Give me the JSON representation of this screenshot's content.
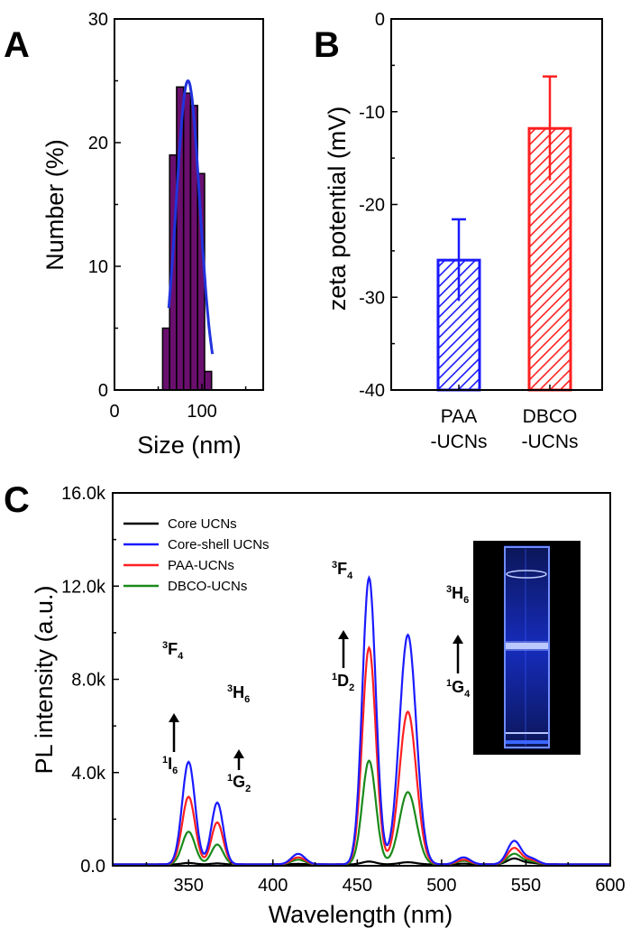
{
  "chart_data": [
    {
      "panel": "A",
      "type": "bar",
      "subtype": "histogram-with-gaussian-fit",
      "xlabel": "Size (nm)",
      "ylabel": "Number (%)",
      "xlim": [
        0,
        170
      ],
      "ylim": [
        0,
        30
      ],
      "xticks": [
        0,
        100
      ],
      "yticks": [
        0,
        10,
        20,
        30
      ],
      "bar_color": "#6a0f6e",
      "fit_color": "#2233dd",
      "bins": [
        {
          "start": 55,
          "end": 63,
          "value": 5
        },
        {
          "start": 63,
          "end": 71,
          "value": 19
        },
        {
          "start": 71,
          "end": 79,
          "value": 24.5
        },
        {
          "start": 79,
          "end": 87,
          "value": 24
        },
        {
          "start": 87,
          "end": 95,
          "value": 23
        },
        {
          "start": 95,
          "end": 103,
          "value": 17.5
        },
        {
          "start": 103,
          "end": 111,
          "value": 1.5
        }
      ],
      "fit": {
        "center": 84,
        "sigma": 13.5,
        "amplitude": 25,
        "range": [
          62,
          112
        ]
      }
    },
    {
      "panel": "B",
      "type": "bar",
      "ylabel": "zeta potential (mV)",
      "ylim": [
        -40,
        0
      ],
      "yticks": [
        0,
        -10,
        -20,
        -30,
        -40
      ],
      "categories": [
        {
          "line1": "PAA",
          "line2": "-UCNs"
        },
        {
          "line1": "DBCO",
          "line2": "-UCNs"
        }
      ],
      "values": [
        -26,
        -11.8
      ],
      "errors": [
        4.4,
        5.6
      ],
      "colors": [
        "#1a1aff",
        "#ff2020"
      ]
    },
    {
      "panel": "C",
      "type": "line",
      "xlabel": "Wavelength (nm)",
      "ylabel": "PL intensity (a.u.)",
      "xlim": [
        305,
        600
      ],
      "ylim": [
        0,
        16000
      ],
      "xticks": [
        350,
        400,
        450,
        500,
        550,
        600
      ],
      "ytick_values": [
        0,
        4000,
        8000,
        12000,
        16000
      ],
      "ytick_labels": [
        "0.0",
        "4.0k",
        "8.0k",
        "12.0k",
        "16.0k"
      ],
      "peak_centers": [
        350,
        367,
        415,
        457,
        480,
        513,
        543,
        553
      ],
      "series": [
        {
          "name": "Core UCNs",
          "color": "#000000",
          "heights": [
            60,
            40,
            20,
            120,
            90,
            30,
            250,
            60
          ]
        },
        {
          "name": "Core-shell UCNs",
          "color": "#1a1aff",
          "heights": [
            4400,
            2650,
            450,
            12300,
            9850,
            300,
            1000,
            250
          ]
        },
        {
          "name": "PAA-UCNs",
          "color": "#ff2020",
          "heights": [
            2900,
            1800,
            300,
            9300,
            6550,
            200,
            700,
            180
          ]
        },
        {
          "name": "DBCO-UCNs",
          "color": "#1a8a1a",
          "heights": [
            1400,
            850,
            200,
            4450,
            3100,
            150,
            450,
            120
          ]
        }
      ],
      "annotations": [
        {
          "upper": "3",
          "upper_sym": "F",
          "upper_sub": "4",
          "lower": "1",
          "lower_sym": "I",
          "lower_sub": "6"
        },
        {
          "upper": "3",
          "upper_sym": "H",
          "upper_sub": "6",
          "lower": "1",
          "lower_sym": "G",
          "lower_sub": "2"
        },
        {
          "upper": "3",
          "upper_sym": "F",
          "upper_sub": "4",
          "lower": "1",
          "lower_sym": "D",
          "lower_sub": "2"
        },
        {
          "upper": "3",
          "upper_sym": "H",
          "upper_sub": "6",
          "lower": "1",
          "lower_sym": "G",
          "lower_sub": "4"
        }
      ]
    }
  ]
}
